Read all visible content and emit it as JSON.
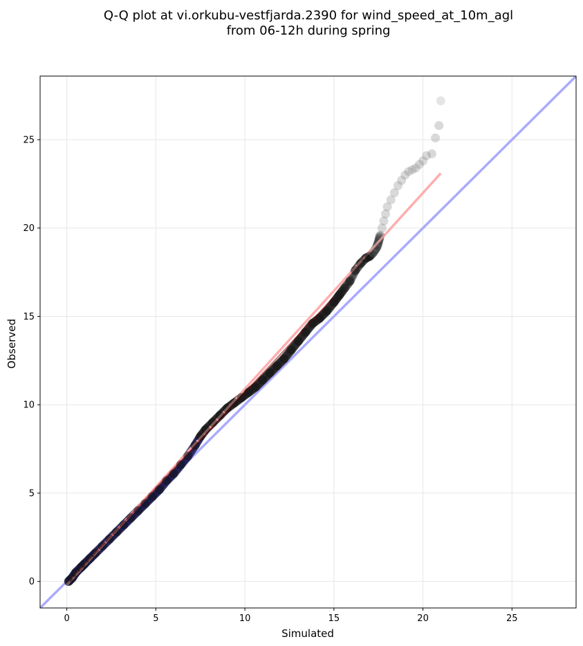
{
  "chart_data": {
    "type": "scatter",
    "title_lines": [
      "Q-Q plot at vi.orkubu-vestfjarda.2390 for wind_speed_at_10m_agl",
      "from 06-12h during spring"
    ],
    "xlabel": "Simulated",
    "ylabel": "Observed",
    "xlim": [
      -1.5,
      28.6
    ],
    "ylim": [
      -1.5,
      28.6
    ],
    "xticks": [
      "0",
      "5",
      "10",
      "15",
      "20",
      "25"
    ],
    "yticks": [
      "0",
      "5",
      "10",
      "15",
      "20",
      "25"
    ],
    "grid": true,
    "reference_line": {
      "slope": 1,
      "intercept": 0,
      "color": "#aaaaff"
    },
    "fit_line": {
      "x": [
        0,
        21
      ],
      "y": [
        -0.2,
        23.1
      ],
      "color": "#ffaaaa"
    },
    "quantile_points": {
      "x": [
        0.1,
        0.3,
        0.5,
        0.8,
        1.0,
        1.3,
        1.6,
        2.0,
        2.4,
        2.8,
        3.2,
        3.6,
        4.0,
        4.4,
        4.8,
        5.2,
        5.6,
        6.0,
        6.4,
        6.8,
        7.2,
        7.5,
        7.8,
        8.2,
        8.6,
        9.0,
        9.4,
        9.8,
        10.2,
        10.6,
        11.0,
        11.4,
        11.8,
        12.2,
        12.6,
        13.0,
        13.4,
        13.8,
        14.2,
        14.6,
        15.0,
        15.3,
        15.6,
        15.9,
        16.2,
        16.5,
        16.8,
        17.0,
        17.2,
        17.4,
        17.5,
        17.6,
        17.7,
        17.8,
        17.9,
        18.0,
        18.2,
        18.4,
        18.6,
        18.8,
        19.0,
        19.2,
        19.4,
        19.6,
        19.8,
        20.0,
        20.2,
        20.5,
        20.7,
        20.9
      ],
      "y": [
        0.0,
        0.2,
        0.5,
        0.8,
        1.0,
        1.3,
        1.6,
        2.0,
        2.4,
        2.8,
        3.2,
        3.6,
        4.0,
        4.4,
        4.8,
        5.2,
        5.7,
        6.1,
        6.6,
        7.1,
        7.7,
        8.2,
        8.6,
        9.0,
        9.4,
        9.8,
        10.1,
        10.4,
        10.7,
        11.0,
        11.4,
        11.8,
        12.2,
        12.6,
        13.1,
        13.6,
        14.1,
        14.6,
        14.9,
        15.3,
        15.8,
        16.2,
        16.6,
        17.0,
        17.6,
        18.0,
        18.3,
        18.4,
        18.6,
        18.9,
        19.2,
        19.6,
        20.0,
        20.4,
        20.8,
        21.2,
        21.6,
        22.0,
        22.4,
        22.7,
        23.0,
        23.2,
        23.3,
        23.4,
        23.6,
        23.8,
        24.1,
        24.2,
        25.1,
        25.8
      ],
      "outlier": {
        "x": 21.0,
        "y": 27.2
      }
    }
  }
}
